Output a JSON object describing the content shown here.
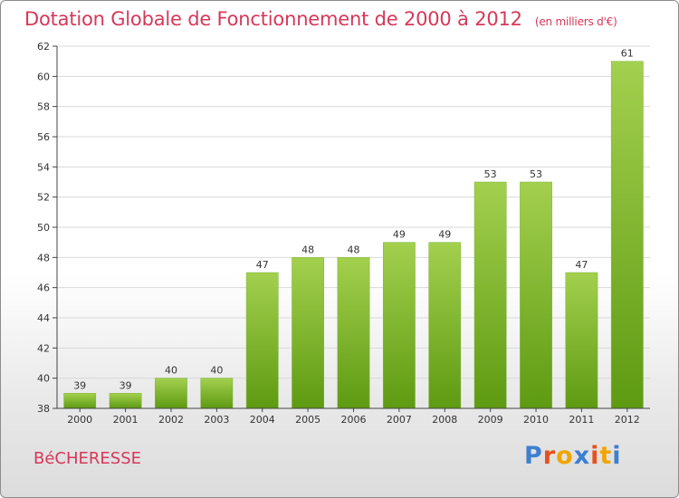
{
  "title": {
    "main": "Dotation Globale de Fonctionnement de 2000 à 2012",
    "unit": "(en milliers d'€)"
  },
  "commune": "BéCHERESSE",
  "logo": {
    "text": "Proxiti",
    "letter_colors": [
      "#3d7fd0",
      "#e8501c",
      "#f0a500",
      "#3d7fd0",
      "#e8501c",
      "#f0a500",
      "#3d7fd0"
    ]
  },
  "colors": {
    "bar_top": "#a3d04e",
    "bar_bottom": "#5e9a12",
    "axis": "#444444",
    "grid": "#d9d9d9"
  },
  "chart_data": {
    "type": "bar",
    "categories": [
      "2000",
      "2001",
      "2002",
      "2003",
      "2004",
      "2005",
      "2006",
      "2007",
      "2008",
      "2009",
      "2010",
      "2011",
      "2012"
    ],
    "values": [
      39,
      39,
      40,
      40,
      47,
      48,
      48,
      49,
      49,
      53,
      53,
      47,
      61
    ],
    "ylim": [
      38,
      62
    ],
    "yticks": [
      38,
      40,
      42,
      44,
      46,
      48,
      50,
      52,
      54,
      56,
      58,
      60,
      62
    ],
    "grid": true,
    "legend": "none"
  }
}
